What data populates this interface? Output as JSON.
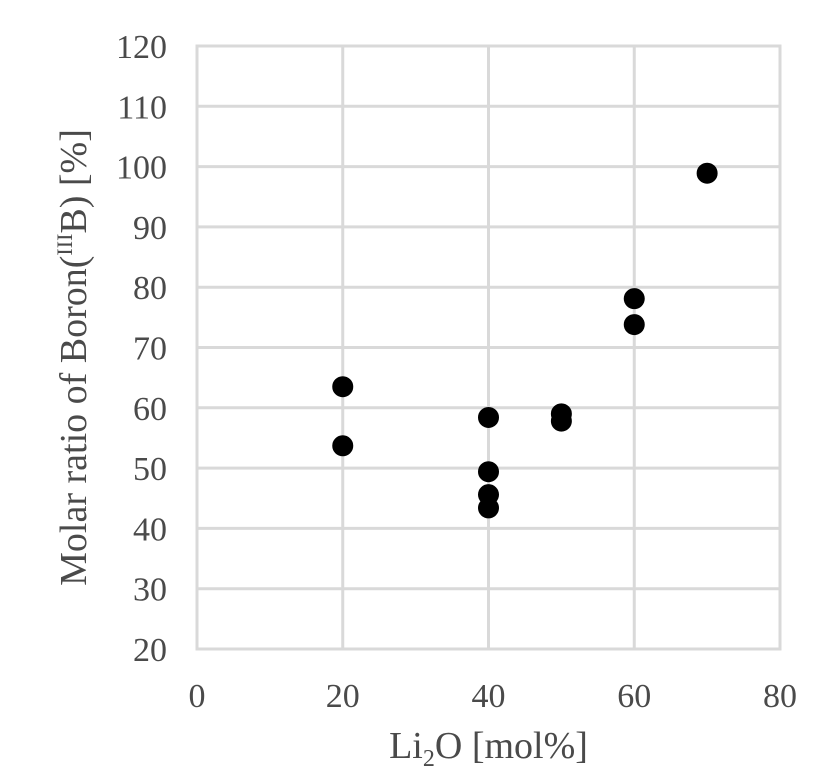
{
  "chart_data": {
    "type": "scatter",
    "title": "",
    "xlabel": {
      "base": "Li",
      "subscript": "2",
      "suffix": "O [mol%]"
    },
    "ylabel": {
      "prefix": "Molar ratio of Boron(",
      "superscript": "III",
      "suffix": "B) [%]"
    },
    "xlim": [
      0,
      80
    ],
    "ylim": [
      20,
      120
    ],
    "x_ticks": [
      0,
      20,
      40,
      60,
      80
    ],
    "y_ticks": [
      20,
      30,
      40,
      50,
      60,
      70,
      80,
      90,
      100,
      110,
      120
    ],
    "x_tick_labels": [
      "0",
      "20",
      "40",
      "60",
      "80"
    ],
    "y_tick_labels": [
      "20",
      "30",
      "40",
      "50",
      "60",
      "70",
      "80",
      "90",
      "100",
      "110",
      "120"
    ],
    "grid": true,
    "legend": "none",
    "marker_color": "#000000",
    "gridline_color": "#d9d9d9",
    "text_color": "#4a4a4a",
    "series": [
      {
        "points": [
          {
            "x": 20,
            "y": 63.5
          },
          {
            "x": 20,
            "y": 53.7
          },
          {
            "x": 40,
            "y": 58.4
          },
          {
            "x": 40,
            "y": 49.4
          },
          {
            "x": 40,
            "y": 45.6
          },
          {
            "x": 40,
            "y": 43.4
          },
          {
            "x": 50,
            "y": 59.0
          },
          {
            "x": 50,
            "y": 57.8
          },
          {
            "x": 60,
            "y": 78.1
          },
          {
            "x": 60,
            "y": 73.8
          },
          {
            "x": 70,
            "y": 98.9
          }
        ]
      }
    ]
  }
}
